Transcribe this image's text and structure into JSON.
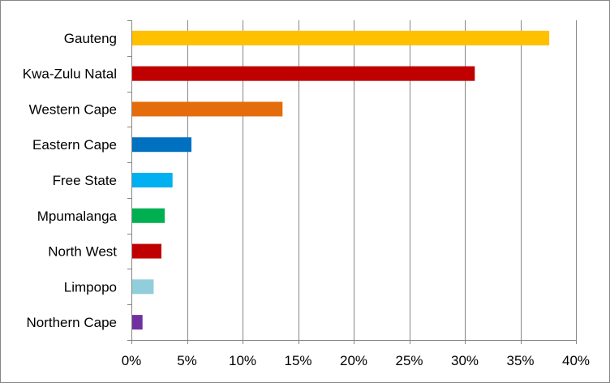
{
  "chart_data": {
    "type": "bar",
    "orientation": "horizontal",
    "title": "",
    "xlabel": "",
    "ylabel": "",
    "categories": [
      "Gauteng",
      "Kwa-Zulu Natal",
      "Western Cape",
      "Eastern Cape",
      "Free State",
      "Mpumalanga",
      "North West",
      "Limpopo",
      "Northern Cape"
    ],
    "values": [
      37.6,
      30.9,
      13.6,
      5.4,
      3.7,
      3.0,
      2.7,
      2.0,
      1.0
    ],
    "colors": [
      "#FFC000",
      "#C00000",
      "#E46C0A",
      "#0070C0",
      "#00B0F0",
      "#00B050",
      "#C00000",
      "#92CDDC",
      "#7030A0"
    ],
    "xlim": [
      0,
      40
    ],
    "x_ticks": [
      0,
      5,
      10,
      15,
      20,
      25,
      30,
      35,
      40
    ],
    "x_tick_labels": [
      "0%",
      "5%",
      "10%",
      "15%",
      "20%",
      "25%",
      "30%",
      "35%",
      "40%"
    ],
    "grid": "vertical",
    "legend": "none"
  }
}
